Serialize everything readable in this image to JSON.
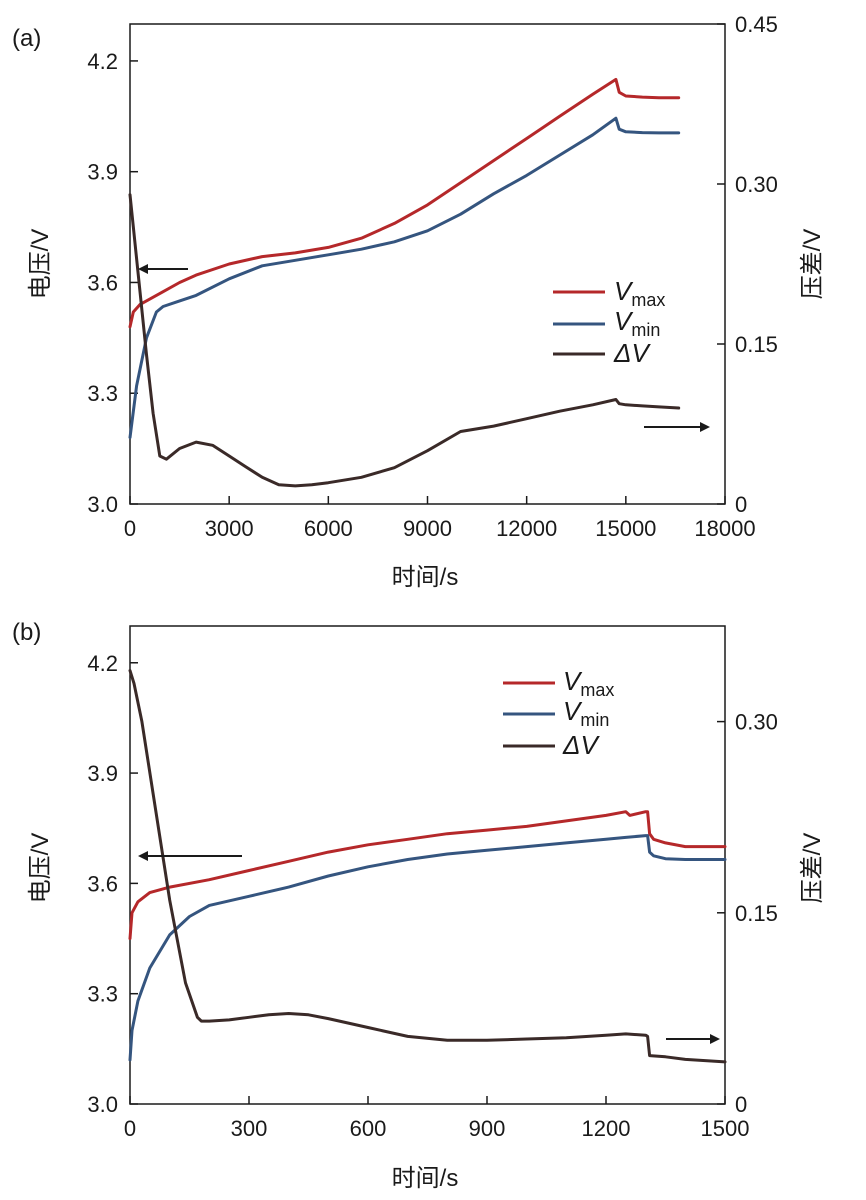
{
  "chart_data": [
    {
      "type": "line",
      "panel_label": "(a)",
      "xlabel": "时间/s",
      "ylabel_left": "电压/V",
      "ylabel_right": "压差/V",
      "xlim": [
        0,
        18000
      ],
      "ylim_left": [
        3.0,
        4.3
      ],
      "ylim_right": [
        0,
        0.45
      ],
      "xticks": [
        "0",
        "3000",
        "6000",
        "9000",
        "12000",
        "15000",
        "18000"
      ],
      "xtick_values": [
        0,
        3000,
        6000,
        9000,
        12000,
        15000,
        18000
      ],
      "yticks_left": [
        "3.0",
        "3.3",
        "3.6",
        "3.9",
        "4.2"
      ],
      "ytick_values_left": [
        3.0,
        3.3,
        3.6,
        3.9,
        4.2
      ],
      "yticks_right": [
        "0",
        "0.15",
        "0.30",
        "0.45"
      ],
      "ytick_values_right": [
        0,
        0.15,
        0.3,
        0.45
      ],
      "legend": [
        {
          "symbol": "V",
          "sub": "max",
          "color": "#b5282a"
        },
        {
          "symbol": "V",
          "sub": "min",
          "color": "#35557f"
        },
        {
          "symbol": "ΔV",
          "sub": "",
          "color": "#3a2a28"
        }
      ],
      "series": [
        {
          "name": "Vmax",
          "axis": "left",
          "color": "#b5282a",
          "x": [
            0,
            100,
            300,
            600,
            1000,
            1500,
            2000,
            3000,
            4000,
            5000,
            6000,
            7000,
            8000,
            9000,
            10000,
            11000,
            12000,
            13000,
            14000,
            14700,
            14800,
            15000,
            15500,
            16000,
            16600
          ],
          "y": [
            3.48,
            3.52,
            3.54,
            3.555,
            3.575,
            3.6,
            3.62,
            3.65,
            3.67,
            3.68,
            3.695,
            3.72,
            3.76,
            3.81,
            3.87,
            3.93,
            3.99,
            4.05,
            4.11,
            4.15,
            4.115,
            4.105,
            4.102,
            4.1,
            4.1
          ]
        },
        {
          "name": "Vmin",
          "axis": "left",
          "color": "#35557f",
          "x": [
            0,
            200,
            500,
            800,
            1000,
            1500,
            2000,
            3000,
            4000,
            5000,
            6000,
            7000,
            8000,
            9000,
            10000,
            11000,
            12000,
            13000,
            14000,
            14700,
            14800,
            15000,
            15500,
            16000,
            16600
          ],
          "y": [
            3.18,
            3.32,
            3.45,
            3.52,
            3.535,
            3.55,
            3.565,
            3.61,
            3.645,
            3.66,
            3.675,
            3.69,
            3.71,
            3.74,
            3.785,
            3.84,
            3.89,
            3.945,
            4.0,
            4.045,
            4.015,
            4.008,
            4.006,
            4.005,
            4.005
          ]
        },
        {
          "name": "ΔV",
          "axis": "right",
          "color": "#3a2a28",
          "x": [
            0,
            100,
            300,
            500,
            700,
            900,
            1100,
            1500,
            2000,
            2500,
            3000,
            3500,
            4000,
            4500,
            5000,
            5500,
            6000,
            7000,
            8000,
            9000,
            10000,
            11000,
            12000,
            13000,
            14000,
            14700,
            14800,
            15000,
            15500,
            16000,
            16600
          ],
          "y": [
            0.29,
            0.26,
            0.2,
            0.14,
            0.085,
            0.045,
            0.042,
            0.052,
            0.058,
            0.055,
            0.045,
            0.035,
            0.025,
            0.018,
            0.017,
            0.018,
            0.02,
            0.025,
            0.034,
            0.05,
            0.068,
            0.073,
            0.08,
            0.087,
            0.093,
            0.098,
            0.094,
            0.093,
            0.092,
            0.091,
            0.09
          ]
        }
      ]
    },
    {
      "type": "line",
      "panel_label": "(b)",
      "xlabel": "时间/s",
      "ylabel_left": "电压/V",
      "ylabel_right": "压差/V",
      "xlim": [
        0,
        1500
      ],
      "ylim_left": [
        3.0,
        4.3
      ],
      "ylim_right": [
        0,
        0.375
      ],
      "xticks": [
        "0",
        "300",
        "600",
        "900",
        "1200",
        "1500"
      ],
      "xtick_values": [
        0,
        300,
        600,
        900,
        1200,
        1500
      ],
      "yticks_left": [
        "3.0",
        "3.3",
        "3.6",
        "3.9",
        "4.2"
      ],
      "ytick_values_left": [
        3.0,
        3.3,
        3.6,
        3.9,
        4.2
      ],
      "yticks_right": [
        "0",
        "0.15",
        "0.30"
      ],
      "ytick_values_right": [
        0,
        0.15,
        0.3
      ],
      "legend": [
        {
          "symbol": "V",
          "sub": "max",
          "color": "#b5282a"
        },
        {
          "symbol": "V",
          "sub": "min",
          "color": "#35557f"
        },
        {
          "symbol": "ΔV",
          "sub": "",
          "color": "#3a2a28"
        }
      ],
      "series": [
        {
          "name": "Vmax",
          "axis": "left",
          "color": "#b5282a",
          "x": [
            0,
            5,
            20,
            50,
            100,
            200,
            300,
            400,
            500,
            600,
            700,
            800,
            900,
            1000,
            1100,
            1200,
            1250,
            1260,
            1300,
            1305,
            1310,
            1320,
            1350,
            1400,
            1500
          ],
          "y": [
            3.45,
            3.52,
            3.55,
            3.575,
            3.59,
            3.61,
            3.635,
            3.66,
            3.685,
            3.705,
            3.72,
            3.735,
            3.745,
            3.755,
            3.77,
            3.785,
            3.795,
            3.785,
            3.795,
            3.795,
            3.735,
            3.72,
            3.71,
            3.7,
            3.7
          ]
        },
        {
          "name": "Vmin",
          "axis": "left",
          "color": "#35557f",
          "x": [
            0,
            5,
            20,
            50,
            100,
            150,
            200,
            300,
            400,
            500,
            600,
            700,
            800,
            900,
            1000,
            1100,
            1200,
            1250,
            1300,
            1305,
            1310,
            1320,
            1350,
            1400,
            1500
          ],
          "y": [
            3.12,
            3.2,
            3.28,
            3.37,
            3.46,
            3.51,
            3.54,
            3.565,
            3.59,
            3.62,
            3.645,
            3.665,
            3.68,
            3.69,
            3.7,
            3.71,
            3.72,
            3.725,
            3.73,
            3.73,
            3.685,
            3.675,
            3.667,
            3.665,
            3.665
          ]
        },
        {
          "name": "ΔV",
          "axis": "right",
          "color": "#3a2a28",
          "x": [
            0,
            10,
            30,
            60,
            100,
            140,
            170,
            180,
            200,
            250,
            300,
            350,
            400,
            450,
            500,
            600,
            700,
            800,
            900,
            1000,
            1100,
            1200,
            1250,
            1300,
            1305,
            1310,
            1350,
            1400,
            1500
          ],
          "y": [
            0.34,
            0.33,
            0.3,
            0.24,
            0.16,
            0.095,
            0.068,
            0.065,
            0.065,
            0.066,
            0.068,
            0.07,
            0.071,
            0.07,
            0.067,
            0.06,
            0.053,
            0.05,
            0.05,
            0.051,
            0.052,
            0.054,
            0.055,
            0.054,
            0.053,
            0.038,
            0.037,
            0.035,
            0.033
          ]
        }
      ]
    }
  ]
}
